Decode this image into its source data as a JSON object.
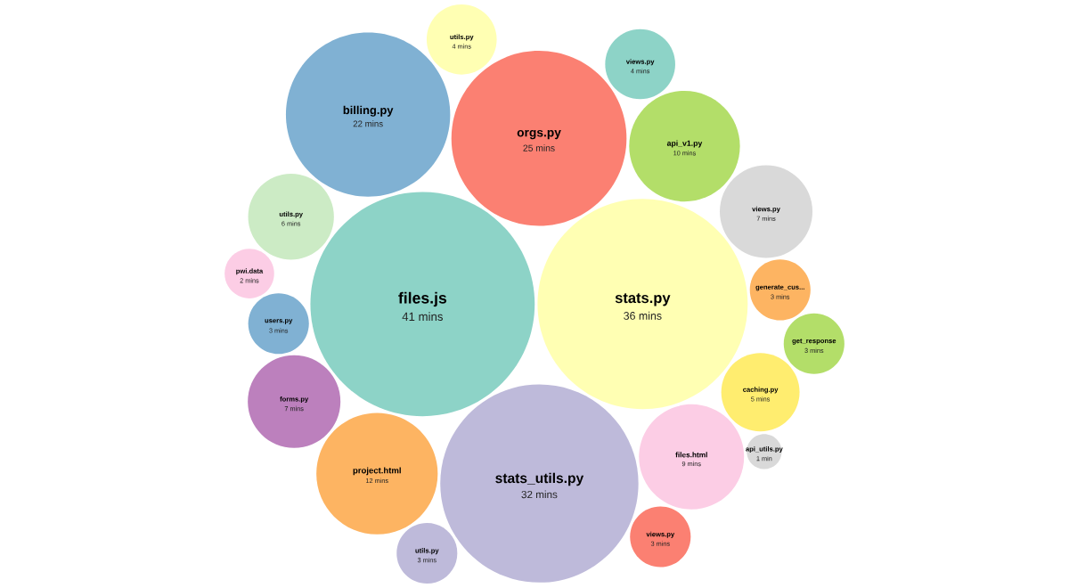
{
  "chart_data": {
    "type": "other",
    "categories": [
      "files.js",
      "stats.py",
      "stats_utils.py",
      "orgs.py",
      "billing.py",
      "project.html",
      "api_v1.py",
      "files.html",
      "views.py",
      "forms.py",
      "utils.py",
      "caching.py",
      "views.py",
      "utils.py",
      "utils.py",
      "views.py",
      "users.py",
      "generate_cus...",
      "get_response",
      "pwi.data",
      "api_utils.py"
    ],
    "values": [
      41,
      36,
      32,
      25,
      22,
      12,
      10,
      9,
      7,
      7,
      6,
      5,
      4,
      4,
      3,
      3,
      3,
      3,
      3,
      2,
      1
    ],
    "value_labels": [
      "41 mins",
      "36 mins",
      "32 mins",
      "25 mins",
      "22 mins",
      "12 mins",
      "10 mins",
      "9 mins",
      "7 mins",
      "7 mins",
      "6 mins",
      "5 mins",
      "4 mins",
      "4 mins",
      "3 mins",
      "3 mins",
      "3 mins",
      "3 mins",
      "3 mins",
      "2 mins",
      "1 min"
    ],
    "colors": [
      "#8dd3c7",
      "#ffffb3",
      "#bebada",
      "#fb8072",
      "#80b1d3",
      "#fdb462",
      "#b3de69",
      "#fccde5",
      "#d9d9d9",
      "#bc80bd",
      "#ccebc5",
      "#ffed6f",
      "#8dd3c7",
      "#ffffb3",
      "#bebada",
      "#fb8072",
      "#80b1d3",
      "#fdb462",
      "#b3de69",
      "#fccde5",
      "#d9d9d9"
    ]
  }
}
